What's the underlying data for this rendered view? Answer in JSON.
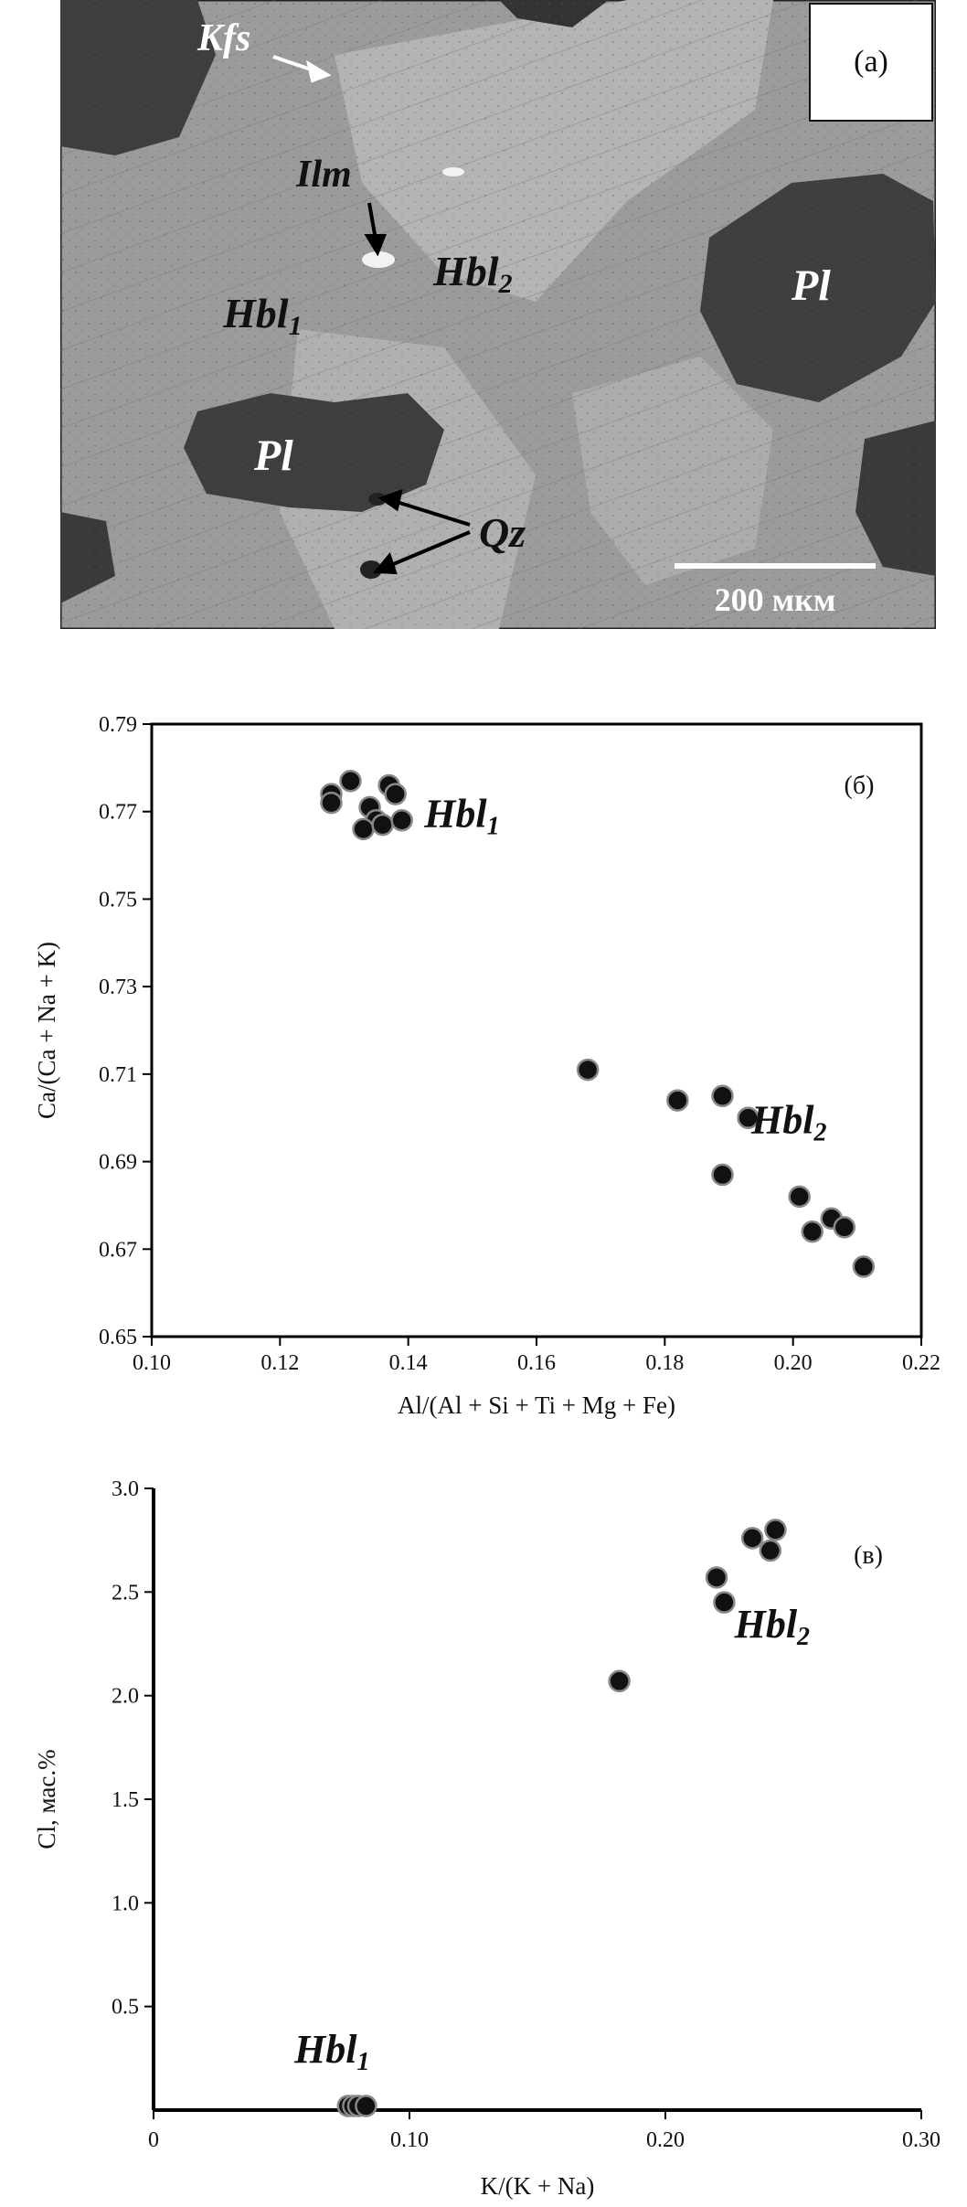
{
  "micrograph": {
    "panel_label": "(а)",
    "scale_bar_label": "200 мкм",
    "labels": {
      "kfs": "Kfs",
      "ilm": "Ilm",
      "hbl1_base": "Hbl",
      "hbl1_sub": "1",
      "hbl2_base": "Hbl",
      "hbl2_sub": "2",
      "pl_right": "Pl",
      "pl_left": "Pl",
      "qz": "Qz"
    },
    "colors": {
      "background": "#9b9b9b",
      "plagioclase": "#3e3e3e",
      "light_mineral": "#bdbdbd"
    }
  },
  "chart_data": [
    {
      "type": "scatter",
      "panel_label": "(б)",
      "xlabel": "Al/(Al + Si + Ti + Mg + Fe)",
      "ylabel": "Ca/(Ca + Na + K)",
      "xlim": [
        0.1,
        0.22
      ],
      "ylim": [
        0.65,
        0.79
      ],
      "xticks": [
        "0.10",
        "0.12",
        "0.14",
        "0.16",
        "0.18",
        "0.20",
        "0.22"
      ],
      "yticks": [
        "0.65",
        "0.67",
        "0.69",
        "0.71",
        "0.73",
        "0.75",
        "0.77",
        "0.79"
      ],
      "grid": false,
      "series": [
        {
          "label_base": "Hbl",
          "label_sub": "1",
          "points": [
            [
              0.128,
              0.774
            ],
            [
              0.131,
              0.777
            ],
            [
              0.128,
              0.772
            ],
            [
              0.134,
              0.771
            ],
            [
              0.135,
              0.768
            ],
            [
              0.137,
              0.776
            ],
            [
              0.138,
              0.774
            ],
            [
              0.133,
              0.766
            ],
            [
              0.136,
              0.767
            ],
            [
              0.139,
              0.768
            ]
          ]
        },
        {
          "label_base": "Hbl",
          "label_sub": "2",
          "points": [
            [
              0.168,
              0.711
            ],
            [
              0.182,
              0.704
            ],
            [
              0.189,
              0.705
            ],
            [
              0.193,
              0.7
            ],
            [
              0.189,
              0.687
            ],
            [
              0.201,
              0.682
            ],
            [
              0.203,
              0.674
            ],
            [
              0.206,
              0.677
            ],
            [
              0.208,
              0.675
            ],
            [
              0.211,
              0.666
            ]
          ]
        }
      ]
    },
    {
      "type": "scatter",
      "panel_label": "(в)",
      "xlabel": "K/(K + Na)",
      "ylabel": "Cl, мас.%",
      "xlim": [
        0,
        0.3
      ],
      "ylim": [
        0,
        3.0
      ],
      "xticks": [
        "0",
        "0.10",
        "0.20",
        "0.30"
      ],
      "yticks": [
        "0.5",
        "1.0",
        "1.5",
        "2.0",
        "2.5",
        "3.0"
      ],
      "grid": false,
      "series": [
        {
          "label_base": "Hbl",
          "label_sub": "1",
          "points": [
            [
              0.076,
              0.02
            ],
            [
              0.078,
              0.02
            ],
            [
              0.08,
              0.02
            ],
            [
              0.083,
              0.02
            ]
          ]
        },
        {
          "label_base": "Hbl",
          "label_sub": "2",
          "points": [
            [
              0.182,
              2.07
            ],
            [
              0.22,
              2.57
            ],
            [
              0.223,
              2.45
            ],
            [
              0.234,
              2.76
            ],
            [
              0.241,
              2.7
            ],
            [
              0.243,
              2.8
            ]
          ]
        }
      ]
    }
  ]
}
